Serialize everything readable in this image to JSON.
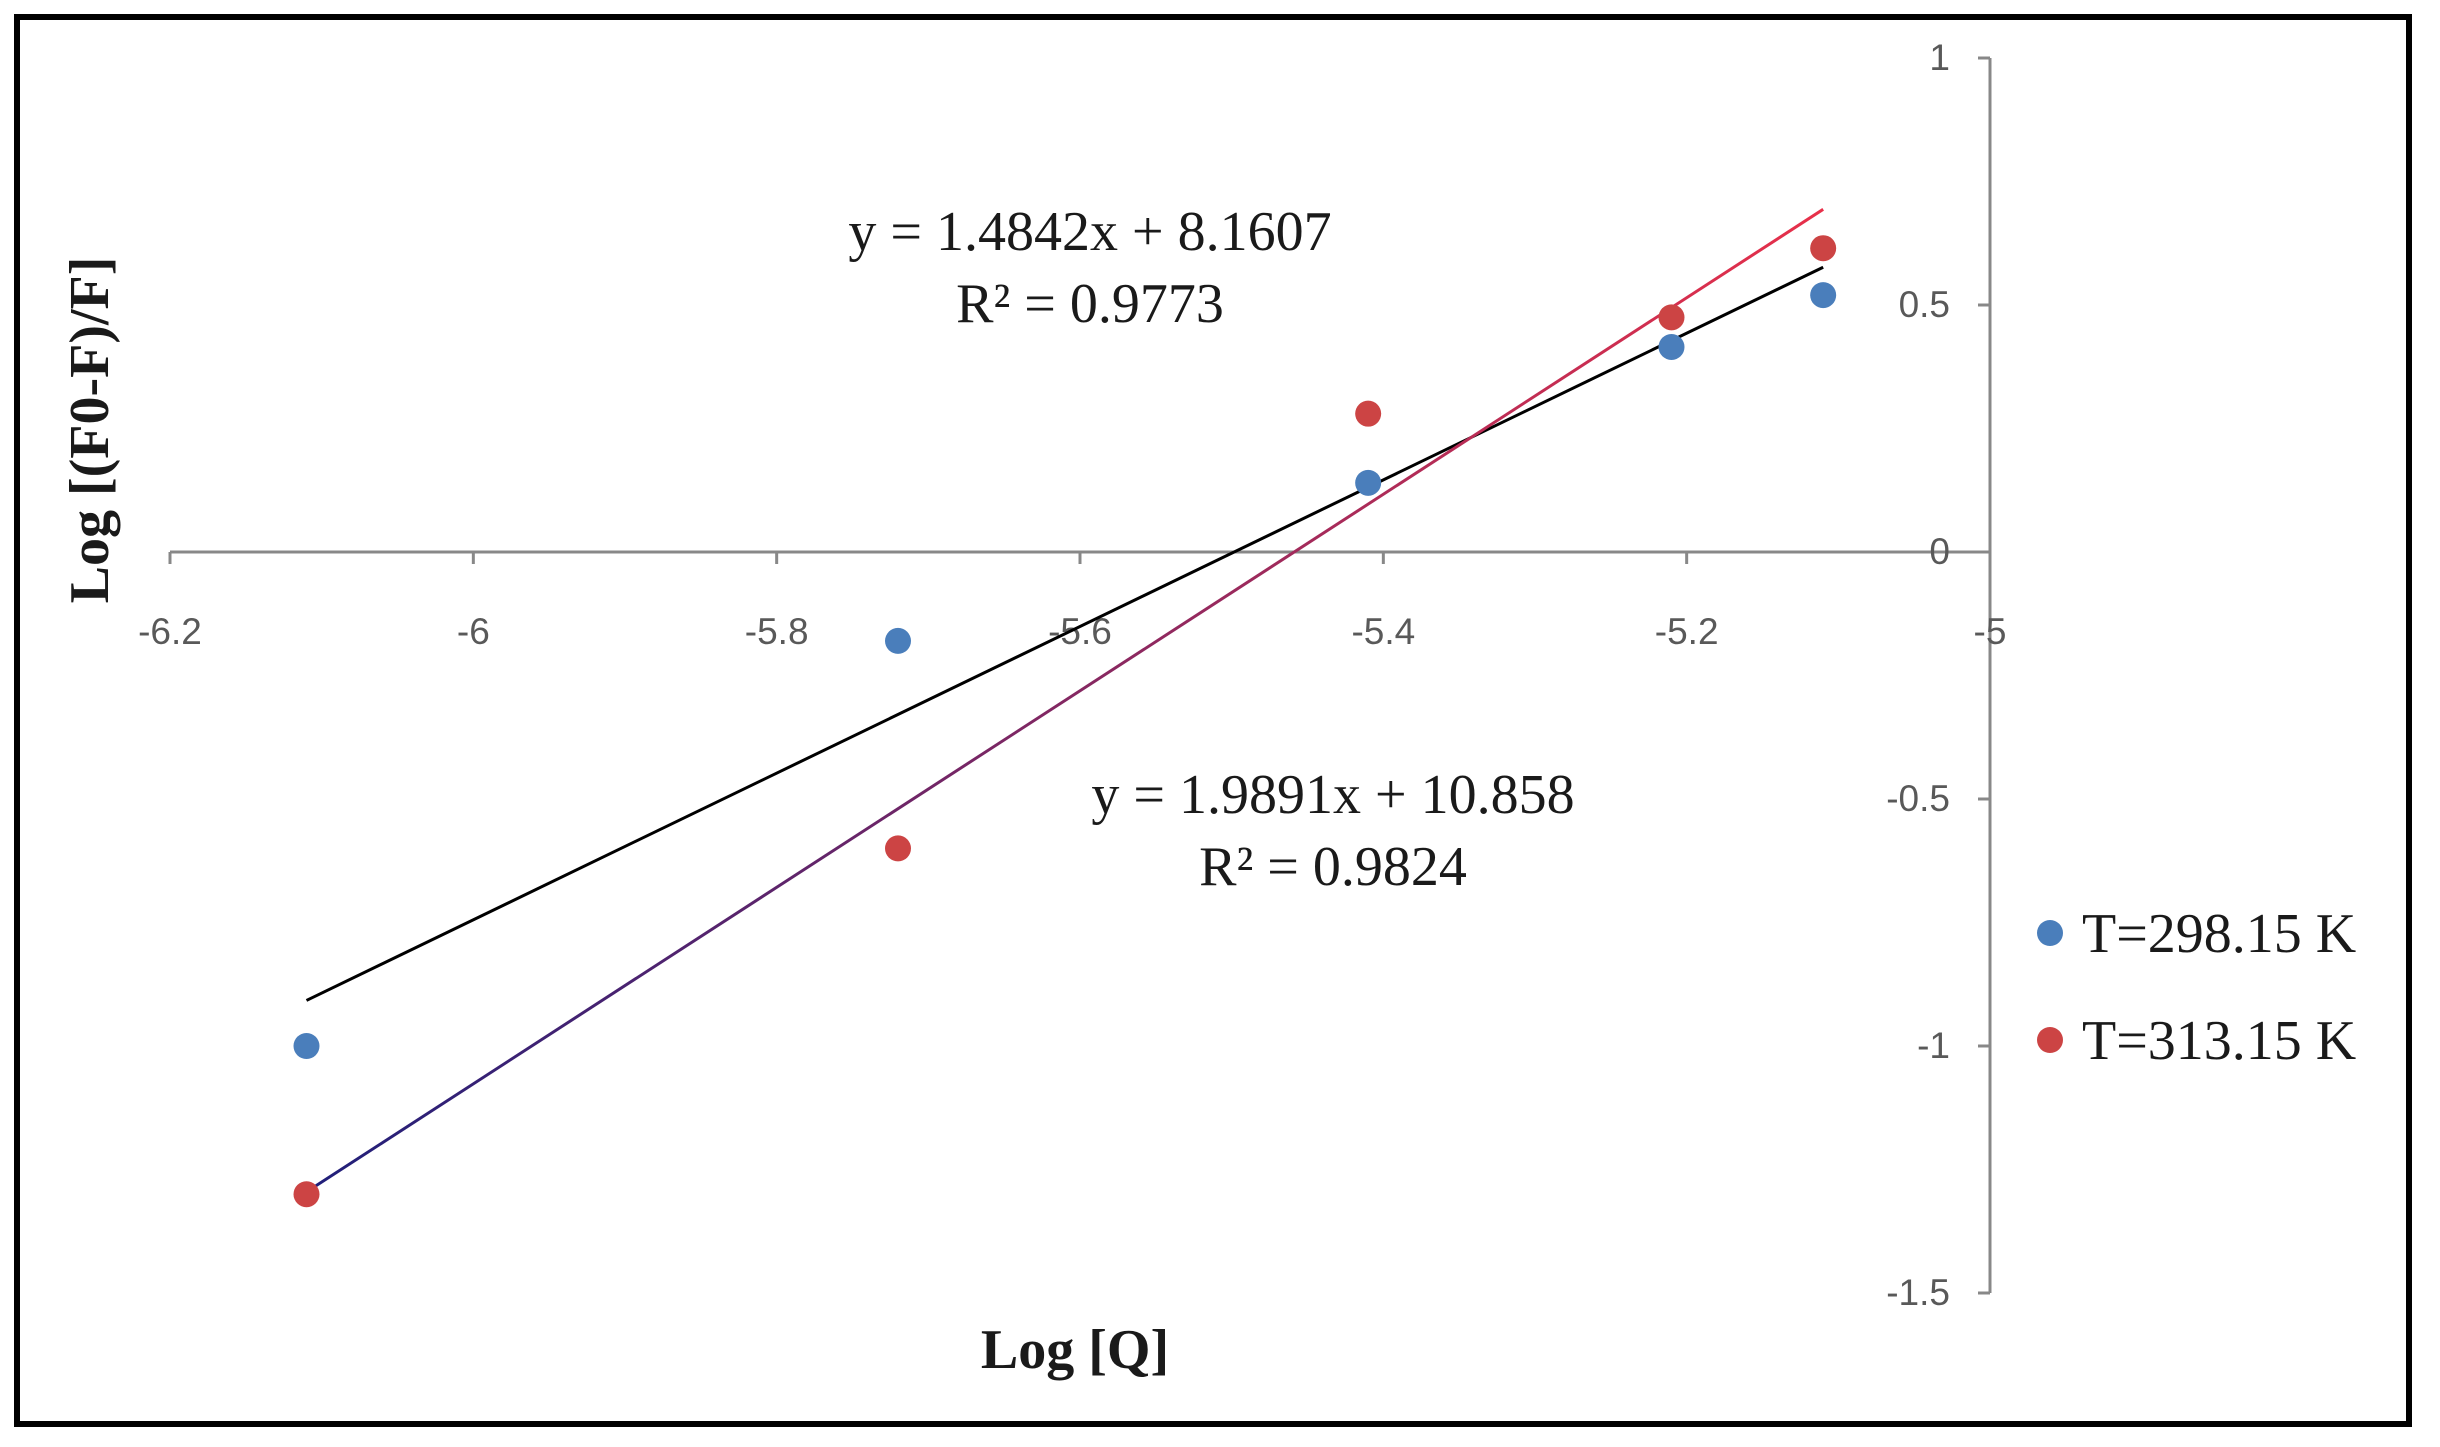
{
  "chart_data": {
    "type": "scatter",
    "xlabel": "Log [Q]",
    "ylabel": "Log [(F0-F)/F]",
    "xlim": [
      -6.2,
      -5
    ],
    "ylim": [
      -1.5,
      1
    ],
    "x_ticks": [
      "-6.2",
      "-6",
      "-5.8",
      "-5.6",
      "-5.4",
      "-5.2",
      "-5"
    ],
    "y_ticks": [
      "1",
      "0.5",
      "0",
      "-0.5",
      "-1",
      "-1.5"
    ],
    "grid": false,
    "legend_position": "right",
    "series": [
      {
        "name": "T=298.15 K",
        "color": "#4a7ebb",
        "x": [
          -6.11,
          -5.72,
          -5.41,
          -5.21,
          -5.11
        ],
        "y": [
          -1.0,
          -0.18,
          0.14,
          0.415,
          0.52
        ],
        "trendline": {
          "slope": 1.4842,
          "intercept": 8.1607,
          "color": "#000000",
          "x_range": [
            -6.11,
            -5.11
          ]
        },
        "equation": "y = 1.4842x + 8.1607",
        "r2": "R² = 0.9773"
      },
      {
        "name": "T=313.15 K",
        "color": "#cc4444",
        "x": [
          -6.11,
          -5.72,
          -5.41,
          -5.21,
          -5.11
        ],
        "y": [
          -1.3,
          -0.6,
          0.28,
          0.475,
          0.615
        ],
        "trendline": {
          "slope": 1.9891,
          "intercept": 10.858,
          "color": "#1f1f7a",
          "color_end": "#e8304a",
          "x_range": [
            -6.11,
            -5.11
          ]
        },
        "equation": "y = 1.9891x + 10.858",
        "r2": "R² = 0.9824"
      }
    ]
  }
}
